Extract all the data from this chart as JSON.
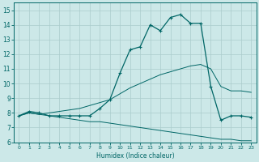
{
  "xlabel": "Humidex (Indice chaleur)",
  "bg_color": "#cce8e8",
  "line_color": "#006666",
  "grid_color": "#aacccc",
  "xlim": [
    -0.5,
    23.5
  ],
  "ylim": [
    6,
    15.5
  ],
  "xticks": [
    0,
    1,
    2,
    3,
    4,
    5,
    6,
    7,
    8,
    9,
    10,
    11,
    12,
    13,
    14,
    15,
    16,
    17,
    18,
    19,
    20,
    21,
    22,
    23
  ],
  "yticks": [
    6,
    7,
    8,
    9,
    10,
    11,
    12,
    13,
    14,
    15
  ],
  "main_x": [
    0,
    1,
    2,
    3,
    4,
    5,
    6,
    7,
    8,
    9,
    10,
    11,
    12,
    13,
    14,
    15,
    16,
    17,
    18,
    19,
    20,
    21,
    22,
    23
  ],
  "main_y": [
    7.8,
    8.1,
    8.0,
    7.8,
    7.8,
    7.8,
    7.8,
    7.8,
    8.3,
    8.9,
    10.7,
    12.3,
    12.5,
    14.0,
    13.6,
    14.5,
    14.7,
    14.1,
    14.1,
    9.8,
    7.5,
    7.8,
    7.8,
    7.7
  ],
  "upper_x": [
    0,
    1,
    2,
    3,
    4,
    5,
    6,
    7,
    8,
    9,
    10,
    11,
    12,
    13,
    14,
    15,
    16,
    17,
    18,
    19,
    20,
    21,
    22,
    23
  ],
  "upper_y": [
    7.8,
    8.0,
    7.9,
    8.0,
    8.1,
    8.2,
    8.3,
    8.5,
    8.7,
    8.9,
    9.3,
    9.7,
    10.0,
    10.3,
    10.6,
    10.8,
    11.0,
    11.2,
    11.3,
    11.0,
    9.8,
    9.5,
    9.5,
    9.4
  ],
  "lower_x": [
    0,
    1,
    2,
    3,
    4,
    5,
    6,
    7,
    8,
    9,
    10,
    11,
    12,
    13,
    14,
    15,
    16,
    17,
    18,
    19,
    20,
    21,
    22,
    23
  ],
  "lower_y": [
    7.8,
    8.0,
    7.9,
    7.8,
    7.7,
    7.6,
    7.5,
    7.4,
    7.4,
    7.3,
    7.2,
    7.1,
    7.0,
    6.9,
    6.8,
    6.7,
    6.6,
    6.5,
    6.4,
    6.3,
    6.2,
    6.2,
    6.1,
    6.1
  ]
}
